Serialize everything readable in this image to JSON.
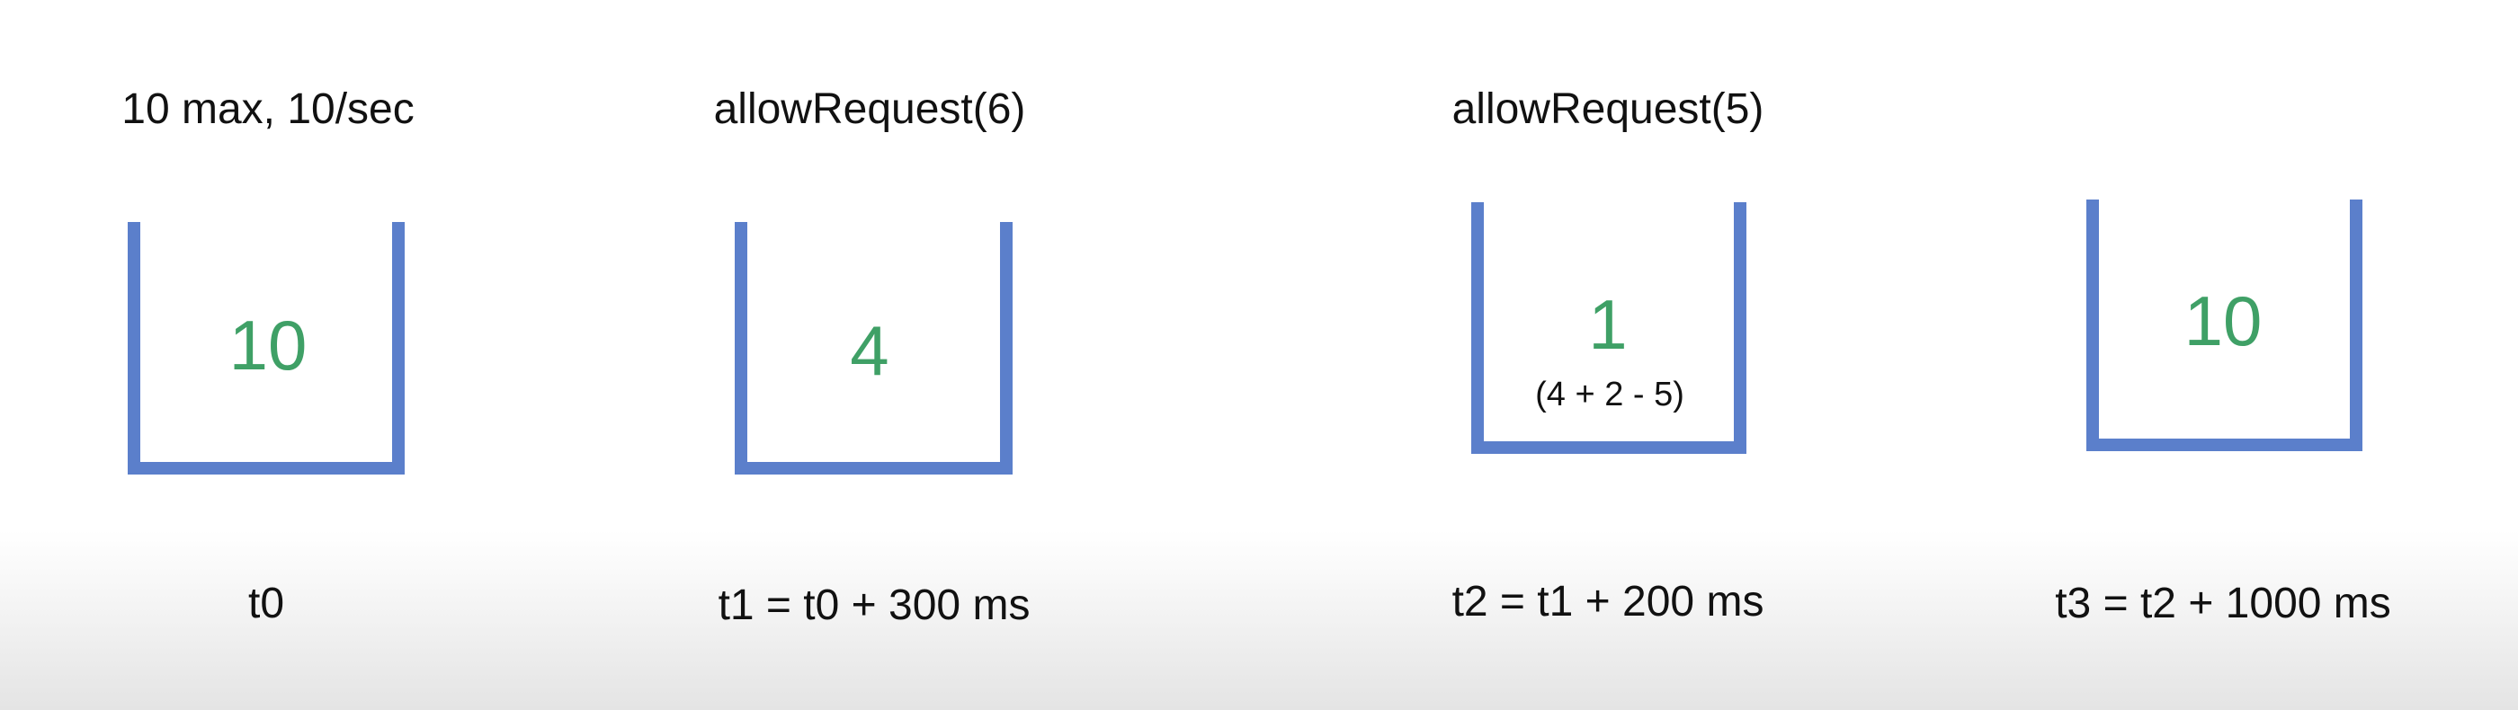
{
  "steps": [
    {
      "title": "10 max, 10/sec",
      "tokens": "10",
      "note": "",
      "time": "t0"
    },
    {
      "title": "allowRequest(6)",
      "tokens": "4",
      "note": "",
      "time": "t1 = t0 + 300 ms"
    },
    {
      "title": "allowRequest(5)",
      "tokens": "1",
      "note": "(4 + 2 - 5)",
      "time": "t2 = t1 + 200 ms"
    },
    {
      "title": "",
      "tokens": "10",
      "note": "",
      "time": "t3 = t2 + 1000 ms"
    }
  ],
  "colors": {
    "bucket": "#5b7fcb",
    "tokens": "#3fa066",
    "text": "#111111"
  }
}
